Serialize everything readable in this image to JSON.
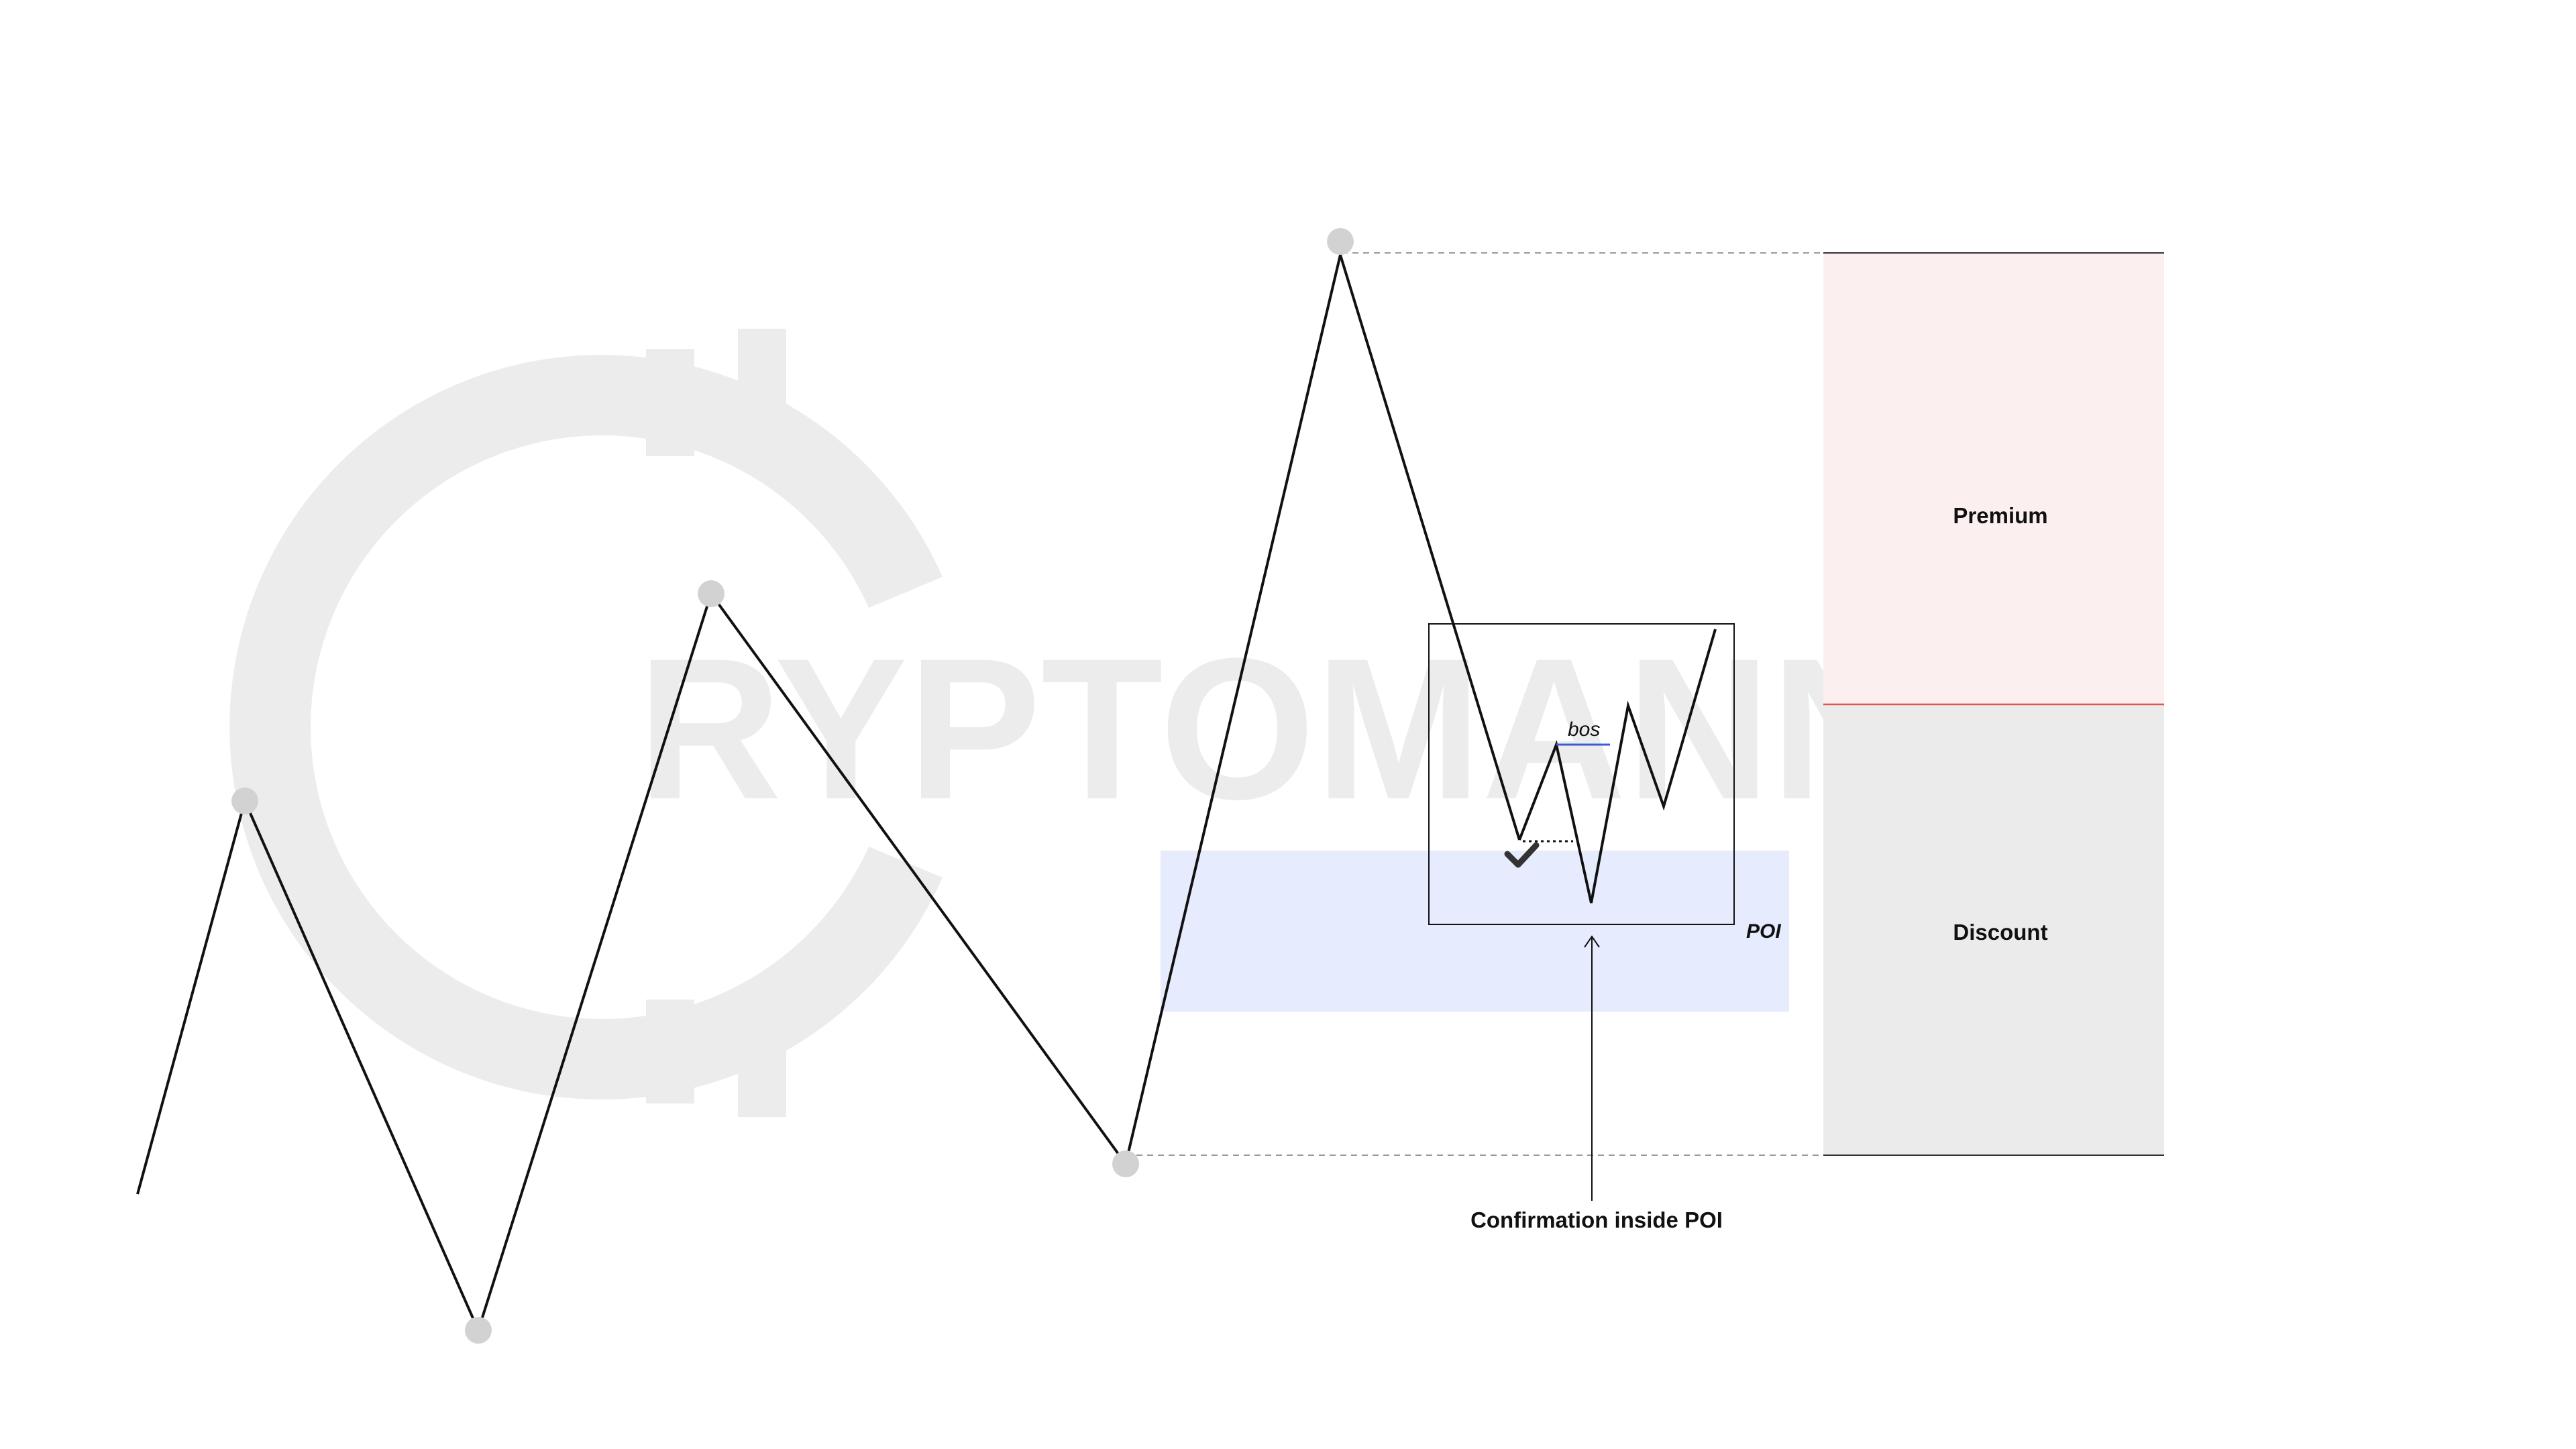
{
  "watermark": {
    "text": "RYPTOMANNN",
    "trademark": "™",
    "color": "#dcdcdc"
  },
  "zones": {
    "premium": {
      "label": "Premium",
      "color": "#fcefef"
    },
    "discount": {
      "label": "Discount",
      "color": "#ebebeb"
    },
    "equilibrium_color": "#e05555"
  },
  "poi": {
    "label": "POI",
    "color": "#e6ebfd"
  },
  "inner_structure": {
    "bos_label": "bos",
    "bos_color": "#3d5bd6",
    "check_icon": "checkmark-icon"
  },
  "annotation": {
    "text": "Confirmation inside POI"
  },
  "swing_point_color": "#d2d2d2"
}
